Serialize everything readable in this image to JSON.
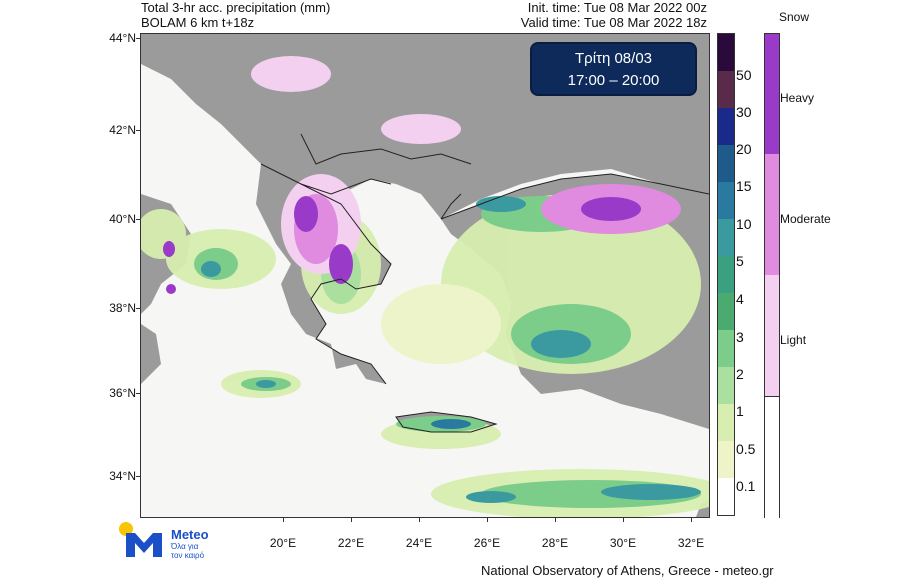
{
  "header": {
    "title_line1": "Total 3-hr acc. precipitation (mm)",
    "title_line2": "BOLAM 6 km t+18z",
    "init_time": "Init. time: Tue 08 Mar 2022 00z",
    "valid_time": "Valid time: Tue 08 Mar 2022 18z"
  },
  "date_box": {
    "day": "Τρίτη 08/03",
    "hours": "17:00 – 20:00"
  },
  "map": {
    "lat_labels": [
      "44°N",
      "42°N",
      "40°N",
      "38°N",
      "36°N",
      "34°N"
    ],
    "lon_labels": [
      "20°E",
      "22°E",
      "24°E",
      "26°E",
      "28°E",
      "30°E",
      "32°E"
    ],
    "land_color": "#9b9b9b",
    "sea_color": "#f6f6f4"
  },
  "colorbar": {
    "labels": [
      "50",
      "30",
      "20",
      "15",
      "10",
      "5",
      "4",
      "3",
      "2",
      "1",
      "0.5",
      "0.1"
    ],
    "colors": [
      "#2a0a3a",
      "#5a2a4a",
      "#1a2a8a",
      "#1e5a8a",
      "#2a7aa0",
      "#3a9aa0",
      "#3aa080",
      "#4aaa70",
      "#7ccc8a",
      "#aadfa0",
      "#d8eeb0",
      "#eef4c8",
      "#ffffff"
    ]
  },
  "snow_legend": {
    "title": "Snow",
    "labels": [
      "Heavy",
      "Moderate",
      "Light"
    ],
    "colors": [
      "#9a3ac8",
      "#e08ae0",
      "#f4d0f0",
      "#ffffff"
    ]
  },
  "logo": {
    "name": "Meteo",
    "tagline_line1": "Όλα για",
    "tagline_line2": "τον καιρό"
  },
  "footer": "National Observatory of Athens, Greece - meteo.gr"
}
